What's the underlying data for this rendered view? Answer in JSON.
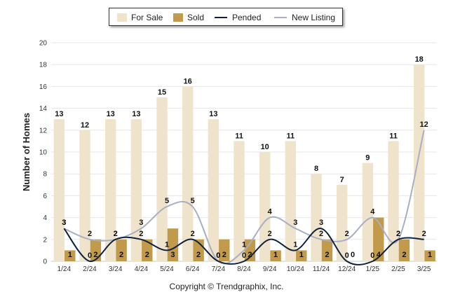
{
  "chart_data": {
    "type": "bar",
    "categories": [
      "1/24",
      "2/24",
      "3/24",
      "4/24",
      "5/24",
      "6/24",
      "7/24",
      "8/24",
      "9/24",
      "10/24",
      "11/24",
      "12/24",
      "1/25",
      "2/25",
      "3/25"
    ],
    "ylabel": "Number of Homes",
    "ylim": [
      0,
      20
    ],
    "yticks": [
      0,
      2,
      4,
      6,
      8,
      10,
      12,
      14,
      16,
      18,
      20
    ],
    "grid": true,
    "legend_position": "top-center",
    "series": [
      {
        "name": "For Sale",
        "kind": "bar",
        "color": "#EFE3CC",
        "values": [
          13,
          12,
          13,
          13,
          15,
          16,
          13,
          11,
          10,
          11,
          8,
          7,
          9,
          11,
          18
        ]
      },
      {
        "name": "Sold",
        "kind": "bar",
        "color": "#C29A4B",
        "values": [
          1,
          2,
          2,
          2,
          3,
          2,
          2,
          2,
          1,
          1,
          2,
          0,
          4,
          2,
          1
        ]
      },
      {
        "name": "Pended",
        "kind": "line",
        "color": "#0D2240",
        "values": [
          3,
          0,
          2,
          2,
          1,
          2,
          0,
          0,
          2,
          1,
          3,
          0,
          0,
          2,
          2
        ]
      },
      {
        "name": "New Listing",
        "kind": "line",
        "color": "#A8AFC4",
        "values": [
          3,
          2,
          2,
          3,
          5,
          5,
          0,
          1,
          4,
          3,
          2,
          2,
          4,
          2,
          12
        ]
      }
    ]
  },
  "footer": {
    "copyright": "Copyright © Trendgraphix, Inc."
  }
}
